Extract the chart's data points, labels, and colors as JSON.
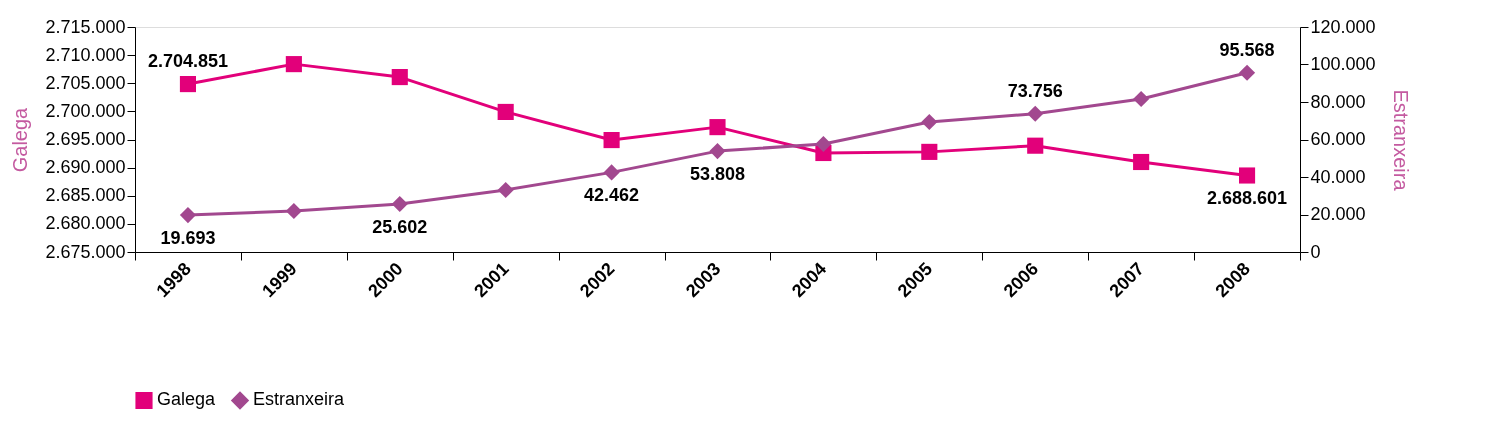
{
  "chart_data": {
    "type": "line",
    "categories": [
      "1998",
      "1999",
      "2000",
      "2001",
      "2002",
      "2003",
      "2004",
      "2005",
      "2006",
      "2007",
      "2008"
    ],
    "ylabel": "Galega",
    "y2label": "Estranxeira",
    "ylim": [
      2675000,
      2715000
    ],
    "yticks": [
      {
        "value": 2675000,
        "label": "2.675.000"
      },
      {
        "value": 2680000,
        "label": "2.680.000"
      },
      {
        "value": 2685000,
        "label": "2.685.000"
      },
      {
        "value": 2690000,
        "label": "2.690.000"
      },
      {
        "value": 2695000,
        "label": "2.695.000"
      },
      {
        "value": 2700000,
        "label": "2.700.000"
      },
      {
        "value": 2705000,
        "label": "2.705.000"
      },
      {
        "value": 2710000,
        "label": "2.710.000"
      },
      {
        "value": 2715000,
        "label": "2.715.000"
      }
    ],
    "y2lim": [
      0,
      120000
    ],
    "y2ticks": [
      0,
      {
        "value": 20000,
        "label": "20.000"
      },
      {
        "value": 40000,
        "label": "40.000"
      },
      {
        "value": 60000,
        "label": "60.000"
      },
      {
        "value": 80000,
        "label": "80.000"
      },
      {
        "value": 100000,
        "label": "100.000"
      },
      {
        "value": 120000,
        "label": "120.000"
      }
    ],
    "series": [
      {
        "name": "Galega",
        "color": "#e2007a",
        "marker": "square",
        "values": [
          2704851,
          2708400,
          2706100,
          2699900,
          2694900,
          2697200,
          2692600,
          2692800,
          2693900,
          2691000,
          2688601
        ],
        "value_labels": [
          "2.704.851",
          null,
          null,
          null,
          null,
          null,
          null,
          null,
          null,
          null,
          "2.688.601"
        ]
      },
      {
        "name": "Estranxeira",
        "color": "#a2488f",
        "marker": "diamond",
        "axis": "y2",
        "values": [
          19693,
          21900,
          25602,
          33100,
          42462,
          53808,
          57600,
          69300,
          73756,
          81600,
          95568
        ],
        "value_labels": [
          "19.693",
          null,
          "25.602",
          null,
          "42.462",
          "53.808",
          null,
          null,
          "73.756",
          null,
          "95.568"
        ]
      }
    ],
    "legend": "bottom",
    "grid": false
  }
}
